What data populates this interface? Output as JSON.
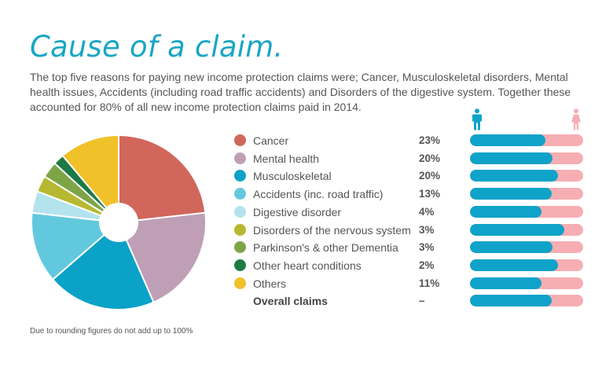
{
  "title": "Cause of a claim.",
  "intro": "The top five reasons for paying new income protection claims were; Cancer, Musculoskeletal disorders, Mental health issues, Accidents (including road traffic accidents) and Disorders of the digestive system. Together these accounted for 80% of all new income protection claims paid in 2014.",
  "footnote": "Due to rounding figures do not add up to 100%",
  "icons": {
    "male": "male-person-icon",
    "female": "female-person-icon",
    "male_color": "#0fa3c9",
    "female_color": "#f6aeb3"
  },
  "chart_data": {
    "type": "pie",
    "title": "",
    "categories": [
      "Cancer",
      "Mental health",
      "Musculoskeletal",
      "Accidents (inc. road traffic)",
      "Digestive disorder",
      "Disorders of the nervous system",
      "Parkinson's & other Dementia",
      "Other heart conditions",
      "Others"
    ],
    "values": [
      23,
      20,
      20,
      13,
      4,
      3,
      3,
      2,
      11
    ],
    "value_labels": [
      "23%",
      "20%",
      "20%",
      "13%",
      "4%",
      "3%",
      "3%",
      "2%",
      "11%"
    ],
    "colors": [
      "#d1665a",
      "#bf9fb6",
      "#0aa2c6",
      "#62c8de",
      "#b4e3ee",
      "#b7b832",
      "#7da547",
      "#1d7a45",
      "#f0c12a"
    ],
    "male_share_by_category": [
      0.67,
      0.73,
      0.78,
      0.72,
      0.63,
      0.83,
      0.73,
      0.78,
      0.63
    ],
    "overall": {
      "label": "Overall claims",
      "value_label": "–",
      "male_share": 0.72
    },
    "legend_position": "right"
  }
}
